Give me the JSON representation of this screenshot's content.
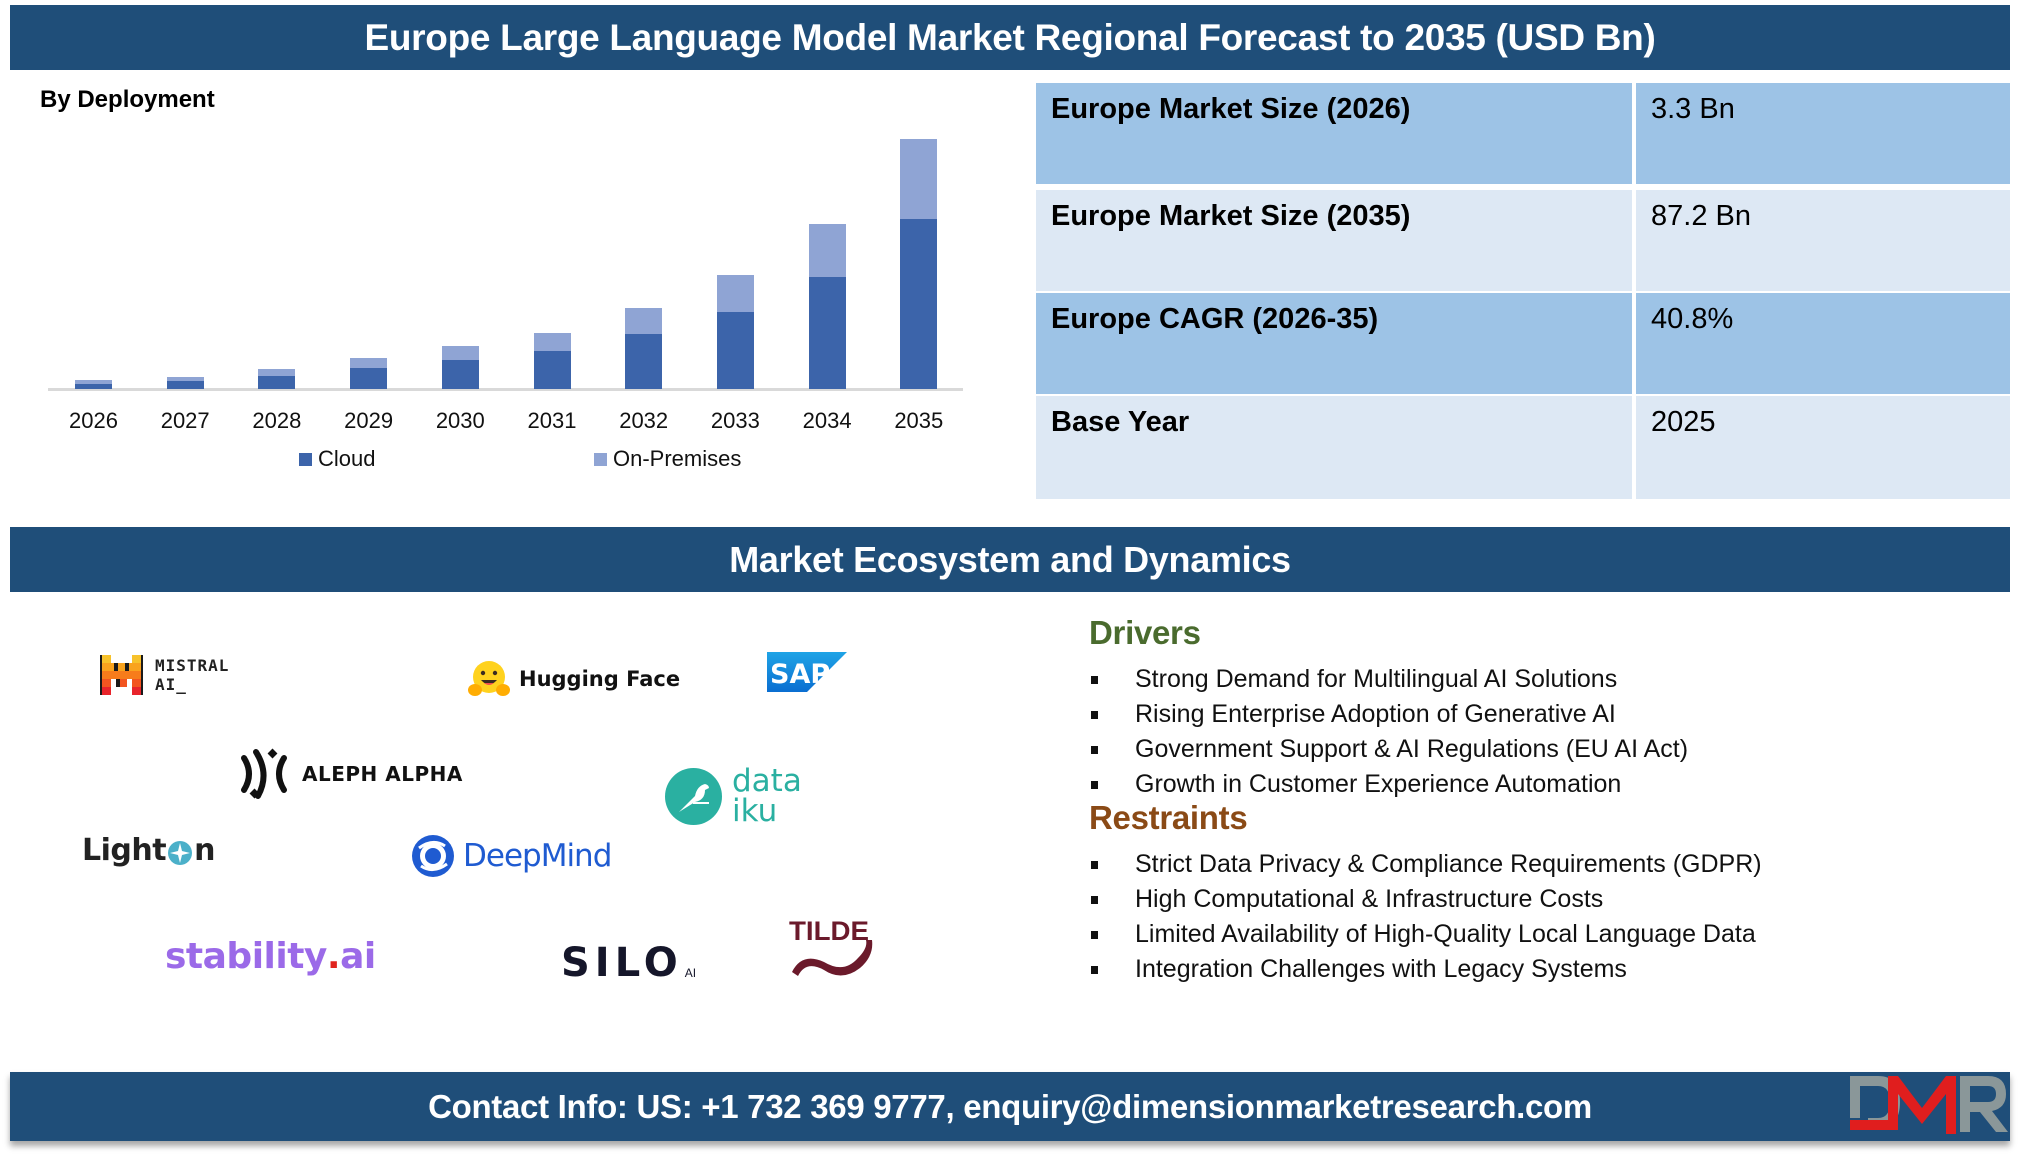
{
  "header": {
    "title": "Europe Large Language Model Market Regional Forecast to 2035 (USD Bn)"
  },
  "chart_section": {
    "subtitle": "By Deployment"
  },
  "chart_data": {
    "type": "bar",
    "stacked": true,
    "title": "By Deployment",
    "xlabel": "",
    "ylabel": "",
    "categories": [
      "2026",
      "2027",
      "2028",
      "2029",
      "2030",
      "2031",
      "2032",
      "2033",
      "2034",
      "2035"
    ],
    "series": [
      {
        "name": "Cloud",
        "color": "#3c64aa",
        "values": [
          1.7,
          2.7,
          4.4,
          7.2,
          10.0,
          13.2,
          19.1,
          26.8,
          39.0,
          59.3
        ]
      },
      {
        "name": "On-Premises",
        "color": "#8fa4d4",
        "values": [
          1.6,
          1.4,
          2.5,
          3.5,
          4.9,
          6.2,
          9.1,
          12.9,
          18.5,
          27.9
        ]
      }
    ],
    "ylim": [
      0,
      87.2
    ],
    "grid": false,
    "axis_labels_visible": false,
    "legend_position": "bottom"
  },
  "stats": {
    "rows": [
      {
        "label": "Europe Market Size (2026)",
        "value": "3.3 Bn"
      },
      {
        "label": "Europe Market Size (2035)",
        "value": "87.2 Bn"
      },
      {
        "label": "Europe CAGR (2026-35)",
        "value": "40.8%"
      },
      {
        "label": "Base Year",
        "value": "2025"
      }
    ]
  },
  "ecosystem": {
    "title": "Market Ecosystem and Dynamics",
    "logos": {
      "mistral_line1": "MISTRAL",
      "mistral_line2": "AI_",
      "hugging_face": "Hugging Face",
      "sap": "SAP",
      "aleph_alpha": "ALEPH ALPHA",
      "dataiku_line1": "data",
      "dataiku_line2": "iku",
      "lighton_prefix": "Light",
      "lighton_suffix": "n",
      "deepmind": "DeepMind",
      "stability_prefix": "stability",
      "stability_dot": ".",
      "stability_suffix": "ai",
      "silo": "SILO",
      "silo_sub": "AI",
      "tilde": "TILDE"
    }
  },
  "dynamics": {
    "drivers_title": "Drivers",
    "drivers": [
      "Strong Demand for Multilingual AI Solutions",
      "Rising Enterprise Adoption of Generative AI",
      "Government Support & AI Regulations (EU AI Act)",
      "Growth in Customer Experience Automation"
    ],
    "restraints_title": "Restraints",
    "restraints": [
      "Strict Data Privacy & Compliance Requirements (GDPR)",
      "High Computational & Infrastructure Costs",
      "Limited Availability of High-Quality Local Language Data",
      "Integration Challenges with Legacy Systems"
    ]
  },
  "footer": {
    "contact": "Contact Info: US: +1 732 369 9777, enquiry@dimensionmarketresearch.com",
    "brand": "DMR"
  },
  "colors": {
    "banner": "#1f4e79",
    "cloud": "#3c64aa",
    "on_premises": "#8fa4d4",
    "table_dark": "#9dc3e6",
    "table_light": "#dde8f4",
    "drivers_heading": "#4a6b2e",
    "restraints_heading": "#8a4a16",
    "dmr_red": "#e01e1e",
    "dmr_gray": "#8a9799"
  }
}
